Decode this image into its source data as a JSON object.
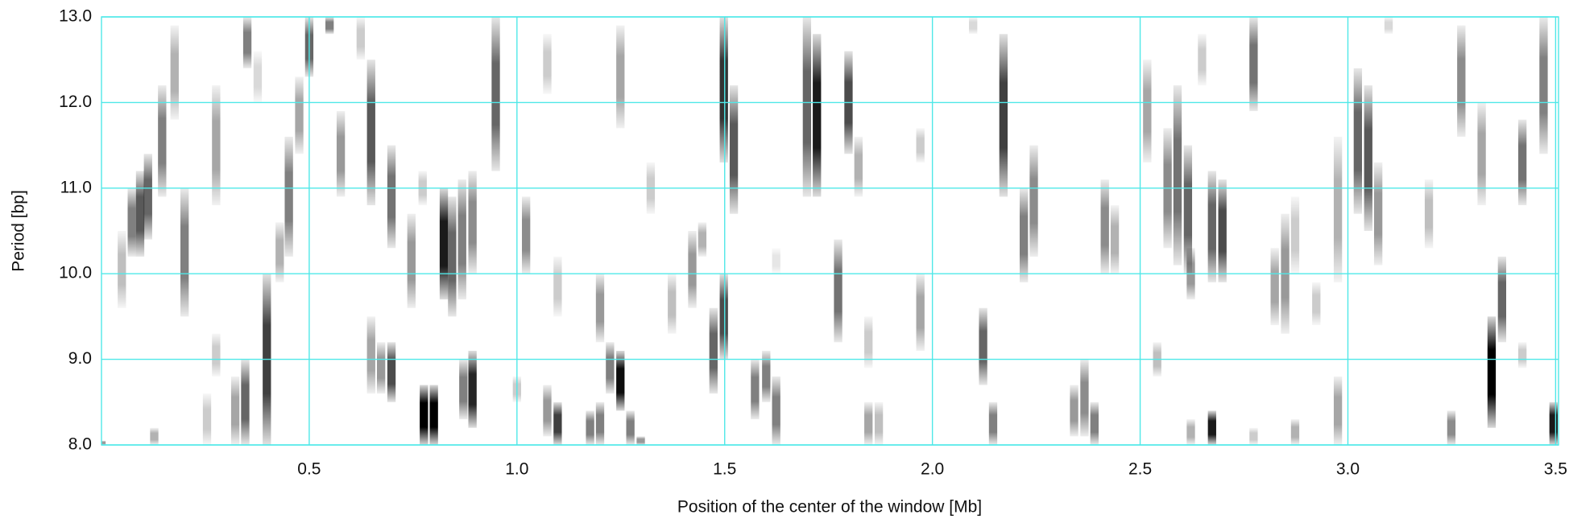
{
  "chart_data": {
    "type": "heatmap",
    "xlabel": "Position of the center of the window [Mb]",
    "ylabel": "Period [bp]",
    "xlim": [
      0,
      3.507
    ],
    "ylim": [
      8,
      13
    ],
    "xticks": [
      0.5,
      {
        "value": 1,
        "label": "1.0"
      },
      1.5,
      {
        "value": 2,
        "label": "2.0"
      },
      2.5,
      {
        "value": 3,
        "label": "3.0"
      },
      3.5
    ],
    "yticks": [
      {
        "value": 8,
        "label": "8.0"
      },
      {
        "value": 9,
        "label": "9.0"
      },
      {
        "value": 10,
        "label": "10.0"
      },
      {
        "value": 11,
        "label": "11.0"
      },
      {
        "value": 12,
        "label": "12.0"
      },
      {
        "value": 13,
        "label": "13.0"
      }
    ],
    "grid": true,
    "color": "#000000",
    "x": [
      0.0,
      0.049,
      0.073,
      0.093,
      0.112,
      0.127,
      0.146,
      0.176,
      0.2,
      0.254,
      0.276,
      0.276,
      0.322,
      0.346,
      0.351,
      0.376,
      0.398,
      0.429,
      0.451,
      0.476,
      0.5,
      0.549,
      0.576,
      0.624,
      0.649,
      0.649,
      0.673,
      0.698,
      0.698,
      0.746,
      0.773,
      0.776,
      0.8,
      0.824,
      0.844,
      0.868,
      0.893,
      0.871,
      0.893,
      0.949,
      1.0,
      1.022,
      1.073,
      1.073,
      1.098,
      1.098,
      1.176,
      1.2,
      1.2,
      1.224,
      1.249,
      1.249,
      1.273,
      1.298,
      1.322,
      1.373,
      1.422,
      1.446,
      1.473,
      1.498,
      1.498,
      1.522,
      1.573,
      1.6,
      1.624,
      1.624,
      1.698,
      1.722,
      1.773,
      1.798,
      1.822,
      1.846,
      1.871,
      1.846,
      1.971,
      1.971,
      2.098,
      2.122,
      2.146,
      2.171,
      2.22,
      2.244,
      2.341,
      2.366,
      2.39,
      2.415,
      2.439,
      2.517,
      2.541,
      2.566,
      2.59,
      2.615,
      2.622,
      2.622,
      2.649,
      2.673,
      2.673,
      2.698,
      2.773,
      2.773,
      2.824,
      2.849,
      2.873,
      2.873,
      2.924,
      2.976,
      2.976,
      3.024,
      3.049,
      3.073,
      3.098,
      3.195,
      3.249,
      3.273,
      3.322,
      3.346,
      3.371,
      3.42,
      3.42,
      3.471,
      3.495
    ],
    "y_low": [
      8.0,
      9.6,
      10.2,
      10.2,
      10.4,
      8.0,
      10.9,
      11.8,
      9.5,
      8.0,
      10.8,
      8.8,
      8.0,
      8.0,
      12.4,
      12.0,
      8.0,
      9.9,
      10.2,
      11.4,
      12.3,
      12.8,
      10.9,
      12.5,
      10.8,
      8.6,
      8.6,
      8.5,
      10.3,
      9.6,
      10.8,
      8.0,
      8.0,
      9.7,
      9.5,
      9.7,
      10.0,
      8.3,
      8.2,
      11.2,
      8.5,
      10.0,
      12.1,
      8.1,
      8.0,
      9.5,
      8.0,
      8.0,
      9.2,
      8.6,
      8.4,
      11.7,
      8.0,
      8.0,
      10.7,
      9.3,
      9.6,
      10.2,
      8.6,
      9.0,
      11.3,
      10.7,
      8.3,
      8.5,
      8.0,
      10.0,
      10.9,
      10.9,
      9.2,
      11.4,
      10.9,
      8.0,
      8.0,
      8.9,
      9.1,
      11.3,
      12.8,
      8.7,
      8.0,
      10.9,
      9.9,
      10.2,
      8.1,
      8.1,
      8.0,
      10.0,
      10.0,
      11.3,
      8.8,
      10.3,
      10.1,
      10.0,
      9.7,
      8.0,
      12.2,
      8.0,
      9.9,
      9.9,
      11.9,
      8.0,
      9.4,
      9.3,
      8.0,
      10.0,
      9.4,
      8.0,
      9.9,
      10.7,
      10.5,
      10.1,
      12.8,
      10.3,
      8.0,
      11.6,
      10.8,
      8.2,
      9.2,
      10.8,
      8.9,
      11.4,
      8.0
    ],
    "y_high": [
      8.05,
      10.5,
      11.0,
      11.2,
      11.4,
      8.2,
      12.2,
      12.9,
      11.0,
      8.6,
      12.2,
      9.3,
      8.8,
      9.0,
      13.0,
      12.6,
      10.0,
      10.6,
      11.6,
      12.3,
      13.0,
      13.0,
      11.9,
      13.0,
      12.5,
      9.5,
      9.2,
      9.2,
      11.5,
      10.7,
      11.2,
      8.7,
      8.7,
      11.0,
      10.9,
      11.1,
      11.2,
      9.0,
      9.1,
      13.0,
      8.8,
      10.9,
      12.8,
      8.7,
      8.5,
      10.2,
      8.4,
      8.5,
      10.0,
      9.2,
      9.1,
      12.9,
      8.4,
      8.1,
      11.3,
      10.0,
      10.5,
      10.6,
      9.6,
      10.0,
      13.0,
      12.2,
      9.0,
      9.1,
      8.8,
      10.3,
      13.0,
      12.8,
      10.4,
      12.6,
      11.6,
      8.5,
      8.5,
      9.5,
      10.0,
      11.7,
      13.0,
      9.6,
      8.5,
      12.8,
      11.0,
      11.5,
      8.7,
      9.0,
      8.5,
      11.1,
      10.8,
      12.5,
      9.2,
      11.7,
      12.2,
      11.5,
      10.3,
      8.3,
      12.8,
      8.4,
      11.2,
      11.1,
      13.0,
      8.2,
      10.3,
      10.7,
      8.3,
      10.9,
      9.9,
      8.8,
      11.6,
      12.4,
      12.2,
      11.3,
      13.0,
      11.1,
      8.4,
      12.9,
      12.0,
      9.5,
      10.2,
      11.8,
      9.2,
      13.0,
      8.5
    ],
    "values": [
      0.4,
      0.25,
      0.5,
      0.65,
      0.6,
      0.3,
      0.5,
      0.3,
      0.5,
      0.2,
      0.35,
      0.2,
      0.35,
      0.6,
      0.5,
      0.15,
      0.75,
      0.3,
      0.5,
      0.35,
      0.6,
      0.5,
      0.4,
      0.2,
      0.65,
      0.35,
      0.4,
      0.7,
      0.55,
      0.4,
      0.2,
      1.0,
      1.0,
      0.9,
      0.6,
      0.5,
      0.45,
      0.5,
      0.85,
      0.6,
      0.2,
      0.45,
      0.2,
      0.4,
      0.75,
      0.2,
      0.5,
      0.5,
      0.4,
      0.5,
      0.95,
      0.35,
      0.5,
      0.4,
      0.2,
      0.25,
      0.4,
      0.3,
      0.6,
      0.7,
      0.8,
      0.65,
      0.5,
      0.5,
      0.5,
      0.1,
      0.6,
      0.9,
      0.55,
      0.7,
      0.3,
      0.35,
      0.25,
      0.2,
      0.35,
      0.2,
      0.15,
      0.6,
      0.5,
      0.75,
      0.5,
      0.45,
      0.4,
      0.45,
      0.5,
      0.45,
      0.3,
      0.35,
      0.25,
      0.45,
      0.55,
      0.6,
      0.4,
      0.3,
      0.2,
      0.9,
      0.6,
      0.7,
      0.55,
      0.2,
      0.35,
      0.4,
      0.3,
      0.2,
      0.2,
      0.35,
      0.3,
      0.6,
      0.65,
      0.4,
      0.15,
      0.25,
      0.45,
      0.45,
      0.35,
      1.0,
      0.6,
      0.55,
      0.2,
      0.5,
      0.9
    ]
  }
}
